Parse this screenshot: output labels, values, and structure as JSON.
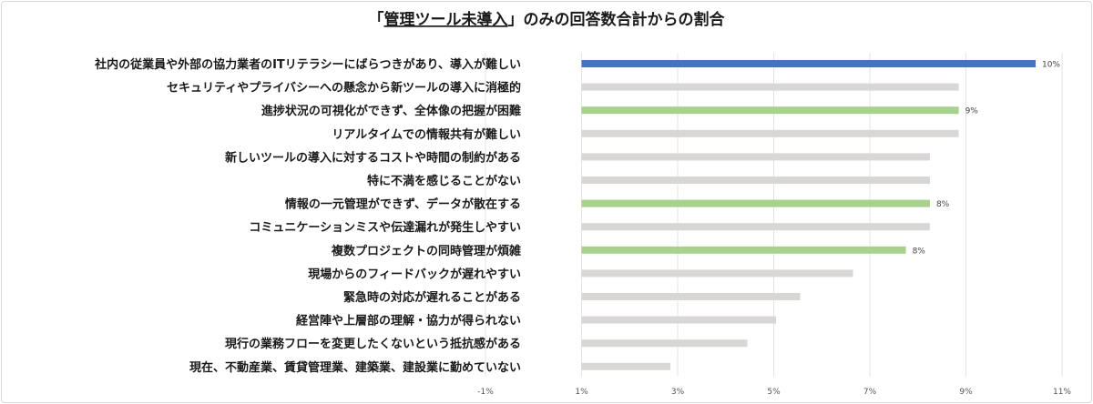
{
  "chart_data": {
    "type": "bar",
    "orientation": "horizontal",
    "title_parts": [
      "「",
      "管理ツール未導入",
      "」のみの回答数合計からの割合"
    ],
    "categories": [
      "社内の従業員や外部の協力業者のITリテラシーにばらつきがあり、導入が難しい",
      "セキュリティやプライバシーへの懸念から新ツールの導入に消極的",
      "進捗状況の可視化ができず、全体像の把握が困難",
      "リアルタイムでの情報共有が難しい",
      "新しいツールの導入に対するコストや時間の制約がある",
      "特に不満を感じることがない",
      "情報の一元管理ができず、データが散在する",
      "コミュニケーションミスや伝達漏れが発生しやすい",
      "複数プロジェクトの同時管理が煩雑",
      "現場からのフィードバックが遅れやすい",
      "緊急時の対応が遅れることがある",
      "経営陣や上層部の理解・協力が得られない",
      "現行の業務フローを変更したくないという抵抗感がある",
      "現在、不動産業、賃貸管理業、建築業、建設業に勤めていない"
    ],
    "values": [
      10.3,
      8.7,
      8.7,
      8.7,
      8.1,
      8.1,
      8.1,
      8.1,
      7.6,
      6.5,
      5.4,
      4.9,
      4.3,
      2.7
    ],
    "highlight": [
      "blue",
      "gray",
      "green",
      "gray",
      "gray",
      "gray",
      "green",
      "gray",
      "green",
      "gray",
      "gray",
      "gray",
      "gray",
      "gray"
    ],
    "data_labels": [
      "10%",
      "",
      "9%",
      "",
      "",
      "",
      "8%",
      "",
      "8%",
      "",
      "",
      "",
      "",
      ""
    ],
    "xlim": [
      -1.15,
      10.85
    ],
    "xticks": [
      -1.15,
      0.85,
      2.85,
      4.85,
      6.85,
      8.85,
      10.85
    ],
    "xtick_labels": [
      "-1%",
      "1%",
      "3%",
      "5%",
      "7%",
      "9%",
      "11%"
    ],
    "bar_start": 0.85,
    "colors": {
      "blue": "#4472c4",
      "green": "#a9d18e",
      "gray": "#d9d6d6",
      "grid": "#e3e3e3",
      "text": "#1a1a1a"
    }
  }
}
